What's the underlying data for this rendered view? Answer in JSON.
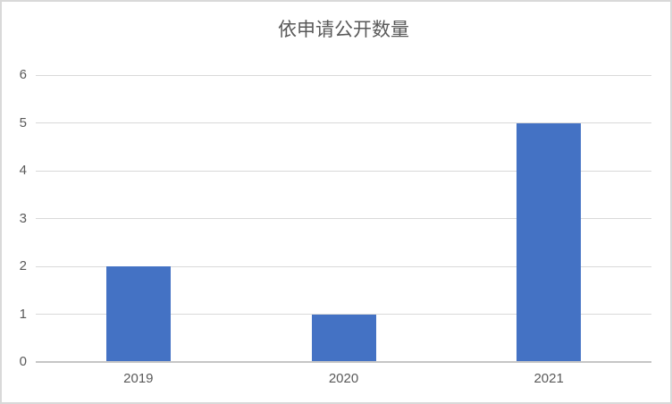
{
  "chart_data": {
    "type": "bar",
    "title": "依申请公开数量",
    "categories": [
      "2019",
      "2020",
      "2021"
    ],
    "values": [
      2,
      1,
      5
    ],
    "xlabel": "",
    "ylabel": "",
    "ylim": [
      0,
      6
    ],
    "yticks": [
      0,
      1,
      2,
      3,
      4,
      5,
      6
    ],
    "grid": true,
    "legend": false,
    "colors": {
      "bar": "#4472C4",
      "title_text": "#595959",
      "tick_text": "#595959",
      "gridline": "#D9D9D9",
      "axis_line": "#C6C6C6",
      "border": "#D9D9D9",
      "background": "#FFFFFF"
    }
  }
}
